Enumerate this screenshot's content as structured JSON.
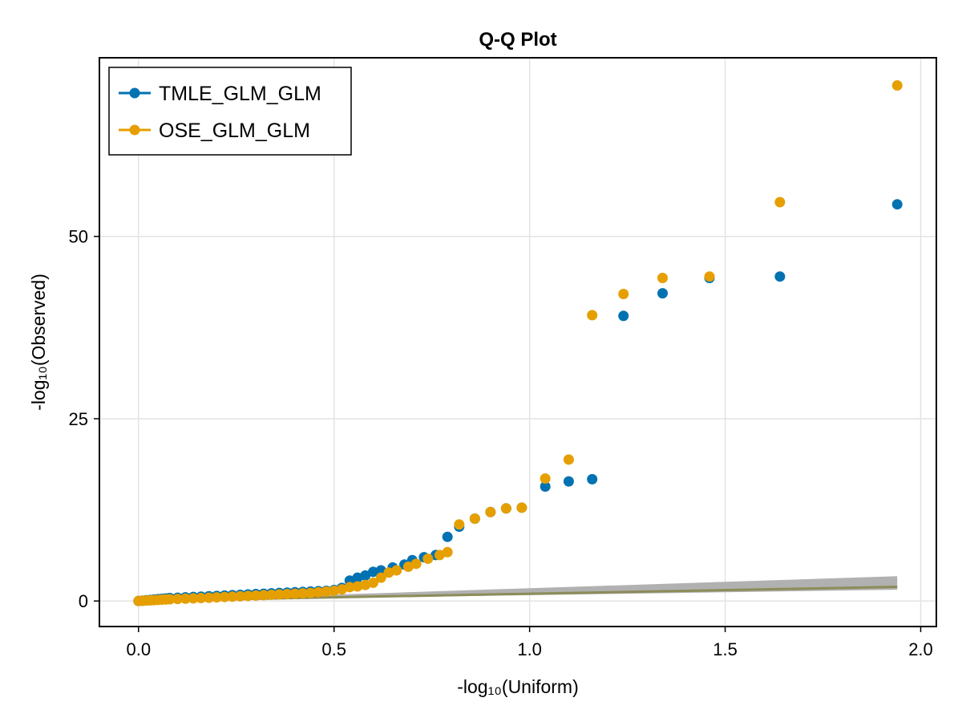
{
  "chart_data": {
    "type": "scatter",
    "title": "Q-Q Plot",
    "xlabel": "-log₁₀(Uniform)",
    "ylabel": "-log₁₀(Observed)",
    "xlim": [
      -0.1,
      2.04
    ],
    "ylim": [
      -3.5,
      74.5
    ],
    "x_ticks": [
      0.0,
      0.5,
      1.0,
      1.5,
      2.0
    ],
    "x_tick_labels": [
      "0.0",
      "0.5",
      "1.0",
      "1.5",
      "2.0"
    ],
    "y_ticks": [
      0,
      25,
      50
    ],
    "y_tick_labels": [
      "0",
      "25",
      "50"
    ],
    "grid": true,
    "legend_position": "top-left",
    "reference_line": {
      "x": [
        0.0,
        1.94
      ],
      "y": [
        0.0,
        1.94
      ],
      "band_upper": [
        0.0,
        3.4
      ],
      "band_lower": [
        0.0,
        1.55
      ],
      "band_color": "#a9a9a9",
      "line_color": "#8c8c5a"
    },
    "series": [
      {
        "name": "TMLE_GLM_GLM",
        "color": "#0072b2",
        "x": [
          0.0,
          0.01,
          0.02,
          0.03,
          0.04,
          0.05,
          0.06,
          0.07,
          0.08,
          0.1,
          0.12,
          0.14,
          0.16,
          0.18,
          0.2,
          0.22,
          0.24,
          0.26,
          0.28,
          0.3,
          0.32,
          0.34,
          0.36,
          0.38,
          0.4,
          0.42,
          0.44,
          0.46,
          0.48,
          0.5,
          0.52,
          0.54,
          0.56,
          0.58,
          0.6,
          0.62,
          0.65,
          0.68,
          0.7,
          0.73,
          0.76,
          0.79,
          0.82,
          0.86,
          0.9,
          0.94,
          0.98,
          1.04,
          1.1,
          1.16,
          1.24,
          1.34,
          1.46,
          1.64,
          1.94
        ],
        "y": [
          0.0,
          0.05,
          0.1,
          0.15,
          0.2,
          0.25,
          0.3,
          0.35,
          0.4,
          0.45,
          0.5,
          0.55,
          0.6,
          0.65,
          0.7,
          0.75,
          0.8,
          0.85,
          0.9,
          0.95,
          1.0,
          1.05,
          1.1,
          1.15,
          1.2,
          1.25,
          1.3,
          1.35,
          1.4,
          1.5,
          1.8,
          2.8,
          3.2,
          3.5,
          4.0,
          4.2,
          4.6,
          5.0,
          5.6,
          6.0,
          6.3,
          8.8,
          10.2,
          11.3,
          12.2,
          12.7,
          12.8,
          15.7,
          16.4,
          16.7,
          39.1,
          42.2,
          44.3,
          44.5,
          54.4
        ]
      },
      {
        "name": "OSE_GLM_GLM",
        "color": "#e69f00",
        "x": [
          0.0,
          0.01,
          0.02,
          0.03,
          0.04,
          0.05,
          0.06,
          0.07,
          0.08,
          0.1,
          0.12,
          0.14,
          0.16,
          0.18,
          0.2,
          0.22,
          0.24,
          0.26,
          0.28,
          0.3,
          0.32,
          0.34,
          0.36,
          0.38,
          0.4,
          0.42,
          0.44,
          0.46,
          0.48,
          0.5,
          0.52,
          0.54,
          0.56,
          0.58,
          0.6,
          0.62,
          0.64,
          0.66,
          0.69,
          0.71,
          0.74,
          0.77,
          0.79,
          0.82,
          0.86,
          0.9,
          0.94,
          0.98,
          1.04,
          1.1,
          1.16,
          1.24,
          1.34,
          1.46,
          1.64,
          1.94
        ],
        "y": [
          0.0,
          0.03,
          0.06,
          0.09,
          0.12,
          0.15,
          0.18,
          0.21,
          0.24,
          0.28,
          0.32,
          0.36,
          0.4,
          0.45,
          0.5,
          0.55,
          0.6,
          0.65,
          0.7,
          0.75,
          0.8,
          0.85,
          0.9,
          0.95,
          1.0,
          1.05,
          1.1,
          1.2,
          1.3,
          1.4,
          1.6,
          1.9,
          2.0,
          2.2,
          2.5,
          3.2,
          3.9,
          4.2,
          4.7,
          5.1,
          5.8,
          6.3,
          6.7,
          10.5,
          11.3,
          12.2,
          12.7,
          12.8,
          16.8,
          19.4,
          39.2,
          42.1,
          44.3,
          44.5,
          54.7,
          70.7
        ]
      }
    ]
  }
}
